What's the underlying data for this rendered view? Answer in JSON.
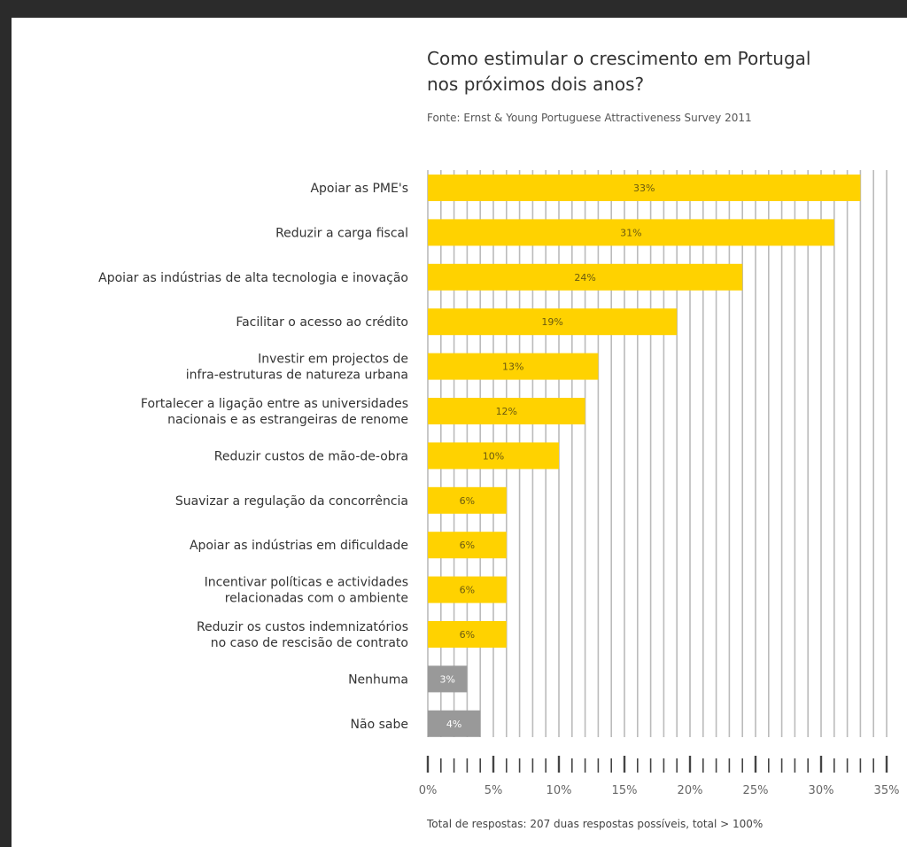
{
  "chart_data": {
    "type": "bar",
    "orientation": "horizontal",
    "title_line1": "Como estimular o crescimento em Portugal",
    "title_line2": "nos próximos dois anos?",
    "subtitle": "Fonte: Ernst & Young Portuguese Attractiveness Survey 2011",
    "footnote": "Total de respostas: 207 duas respostas possíveis, total > 100%",
    "categories": [
      [
        "Apoiar as PME's"
      ],
      [
        "Reduzir a carga fiscal"
      ],
      [
        "Apoiar as indústrias de alta tecnologia e inovação"
      ],
      [
        "Facilitar o acesso ao crédito"
      ],
      [
        "Investir em projectos de",
        "infra-estruturas de natureza urbana"
      ],
      [
        "Fortalecer a ligação entre as universidades",
        "nacionais e as estrangeiras de renome"
      ],
      [
        "Reduzir custos de mão-de-obra"
      ],
      [
        "Suavizar a regulação da concorrência"
      ],
      [
        "Apoiar as indústrias em dificuldade"
      ],
      [
        "Incentivar políticas e actividades",
        "relacionadas com o ambiente"
      ],
      [
        "Reduzir os custos indemnizatórios",
        "no caso de rescisão de contrato"
      ],
      [
        "Nenhuma"
      ],
      [
        "Não sabe"
      ]
    ],
    "values": [
      33,
      31,
      24,
      19,
      13,
      12,
      10,
      6,
      6,
      6,
      6,
      3,
      4
    ],
    "value_labels": [
      "33%",
      "31%",
      "24%",
      "19%",
      "13%",
      "12%",
      "10%",
      "6%",
      "6%",
      "6%",
      "6%",
      "3%",
      "4%"
    ],
    "bar_colors": [
      "#ffd200",
      "#ffd200",
      "#ffd200",
      "#ffd200",
      "#ffd200",
      "#ffd200",
      "#ffd200",
      "#ffd200",
      "#ffd200",
      "#ffd200",
      "#ffd200",
      "#999999",
      "#999999"
    ],
    "xlim": [
      0,
      35
    ],
    "xticks": [
      0,
      5,
      10,
      15,
      20,
      25,
      30,
      35
    ],
    "xtick_labels": [
      "0%",
      "5%",
      "10%",
      "15%",
      "20%",
      "25%",
      "30%",
      "35%"
    ],
    "grid": true,
    "grid_color": "#bbbbbb",
    "tick_color": "#444444"
  }
}
